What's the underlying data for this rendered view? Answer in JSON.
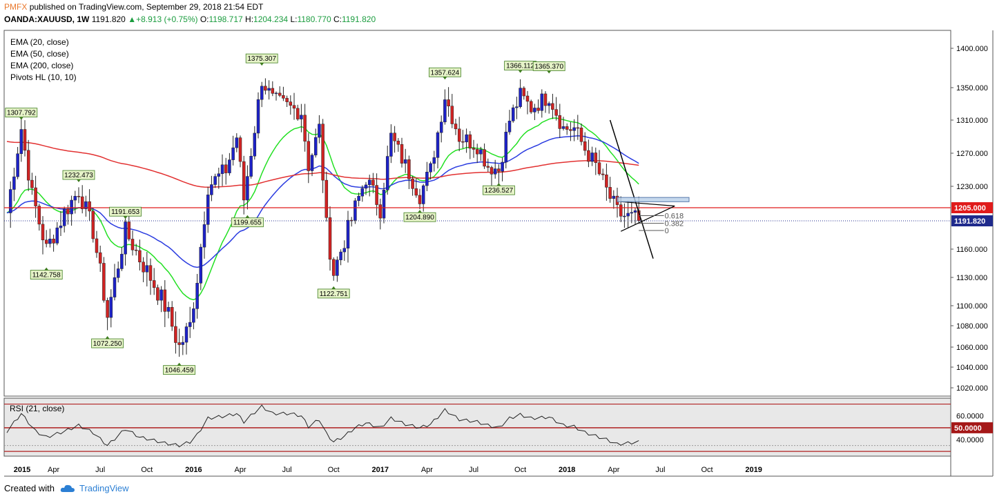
{
  "header": {
    "brand": "PMFX",
    "published": "published on TradingView.com, September 29, 2018 21:54 EDT",
    "symbol": "OANDA:XAUUSD, 1W",
    "price": "1191.820",
    "change": "+8.913 (+0.75%)",
    "o_label": "O:",
    "o": "1198.717",
    "h_label": "H:",
    "h": "1204.234",
    "l_label": "L:",
    "l": "1180.770",
    "c_label": "C:",
    "c": "1191.820"
  },
  "footer": {
    "created": "Created with",
    "brand": "TradingView"
  },
  "colors": {
    "up": "#1d22c8",
    "down": "#d12323",
    "ema20": "#22e022",
    "ema50": "#2a3be0",
    "ema200": "#e23030",
    "level": "#e01b1b",
    "rsi": "#222222",
    "label_bg": "#e6f3c8",
    "label_border": "#3e7d1e"
  },
  "chart_data": [
    {
      "type": "candlestick",
      "title": "OANDA:XAUUSD, 1W",
      "legend": [
        "EMA (20, close)",
        "EMA (50, close)",
        "EMA (200, close)",
        "Pivots HL (10, 10)"
      ],
      "ylim": [
        1005,
        1425
      ],
      "y_ticks": [
        "1400.000",
        "1350.000",
        "1310.000",
        "1270.000",
        "1230.000",
        "1160.000",
        "1130.000",
        "1100.000",
        "1080.000",
        "1060.000",
        "1040.000",
        "1020.000"
      ],
      "x_ticks": [
        "2015",
        "Apr",
        "Jul",
        "Oct",
        "2016",
        "Apr",
        "Jul",
        "Oct",
        "2017",
        "Apr",
        "Jul",
        "Oct",
        "2018",
        "Apr",
        "Jul",
        "Oct",
        "2019"
      ],
      "x_range_weeks": [
        0,
        211
      ],
      "pivots": [
        {
          "week": 4,
          "value": 1307.792,
          "label": "1307.792",
          "kind": "high"
        },
        {
          "week": 20,
          "value": 1232.473,
          "label": "1232.473",
          "kind": "high"
        },
        {
          "week": 11,
          "value": 1142.758,
          "label": "1142.758",
          "kind": "low"
        },
        {
          "week": 33,
          "value": 1191.653,
          "label": "1191.653",
          "kind": "high"
        },
        {
          "week": 28,
          "value": 1072.25,
          "label": "1072.250",
          "kind": "low"
        },
        {
          "week": 48,
          "value": 1046.459,
          "label": "1046.459",
          "kind": "low"
        },
        {
          "week": 71,
          "value": 1375.307,
          "label": "1375.307",
          "kind": "high"
        },
        {
          "week": 71,
          "value": 1199.655,
          "label": "1199.655",
          "kind": "low",
          "offset_week": -4
        },
        {
          "week": 91,
          "value": 1122.751,
          "label": "1122.751",
          "kind": "low"
        },
        {
          "week": 115,
          "value": 1204.89,
          "label": "1204.890",
          "kind": "low"
        },
        {
          "week": 122,
          "value": 1357.624,
          "label": "1357.624",
          "kind": "high"
        },
        {
          "week": 137,
          "value": 1236.527,
          "label": "1236.527",
          "kind": "low"
        },
        {
          "week": 143,
          "value": 1366.112,
          "label": "1366.112",
          "kind": "high"
        },
        {
          "week": 151,
          "value": 1365.37,
          "label": "1365.370",
          "kind": "high"
        }
      ],
      "key_points": [
        {
          "week": 0,
          "value": 1200
        },
        {
          "week": 4,
          "value": 1300
        },
        {
          "week": 7,
          "value": 1220
        },
        {
          "week": 11,
          "value": 1160
        },
        {
          "week": 16,
          "value": 1200
        },
        {
          "week": 20,
          "value": 1225
        },
        {
          "week": 24,
          "value": 1180
        },
        {
          "week": 28,
          "value": 1090
        },
        {
          "week": 33,
          "value": 1180
        },
        {
          "week": 37,
          "value": 1150
        },
        {
          "week": 40,
          "value": 1130
        },
        {
          "week": 44,
          "value": 1100
        },
        {
          "week": 48,
          "value": 1060
        },
        {
          "week": 51,
          "value": 1080
        },
        {
          "week": 53,
          "value": 1130
        },
        {
          "week": 56,
          "value": 1230
        },
        {
          "week": 61,
          "value": 1250
        },
        {
          "week": 64,
          "value": 1290
        },
        {
          "week": 66,
          "value": 1215
        },
        {
          "week": 69,
          "value": 1300
        },
        {
          "week": 71,
          "value": 1360
        },
        {
          "week": 74,
          "value": 1335
        },
        {
          "week": 79,
          "value": 1325
        },
        {
          "week": 82,
          "value": 1320
        },
        {
          "week": 84,
          "value": 1255
        },
        {
          "week": 87,
          "value": 1300
        },
        {
          "week": 89,
          "value": 1185
        },
        {
          "week": 91,
          "value": 1135
        },
        {
          "week": 94,
          "value": 1170
        },
        {
          "week": 97,
          "value": 1205
        },
        {
          "week": 100,
          "value": 1240
        },
        {
          "week": 104,
          "value": 1205
        },
        {
          "week": 107,
          "value": 1290
        },
        {
          "week": 111,
          "value": 1255
        },
        {
          "week": 115,
          "value": 1220
        },
        {
          "week": 118,
          "value": 1250
        },
        {
          "week": 122,
          "value": 1340
        },
        {
          "week": 126,
          "value": 1290
        },
        {
          "week": 131,
          "value": 1280
        },
        {
          "week": 134,
          "value": 1255
        },
        {
          "week": 137,
          "value": 1250
        },
        {
          "week": 140,
          "value": 1310
        },
        {
          "week": 143,
          "value": 1340
        },
        {
          "week": 146,
          "value": 1325
        },
        {
          "week": 151,
          "value": 1340
        },
        {
          "week": 155,
          "value": 1300
        },
        {
          "week": 158,
          "value": 1300
        },
        {
          "week": 161,
          "value": 1275
        },
        {
          "week": 164,
          "value": 1255
        },
        {
          "week": 167,
          "value": 1225
        },
        {
          "week": 170,
          "value": 1200
        },
        {
          "week": 173,
          "value": 1195
        },
        {
          "week": 176,
          "value": 1192
        }
      ],
      "last_week": 176,
      "horizontal_level": {
        "value": 1205.0,
        "label": "1205.000"
      },
      "current_price": {
        "value": 1191.82,
        "label": "1191.820"
      },
      "fib_labels": [
        "0.618",
        "0.382",
        "0"
      ],
      "indicators": [
        "EMA 20",
        "EMA 50",
        "EMA 200"
      ]
    },
    {
      "type": "line",
      "title": "RSI (21, close)",
      "ylim": [
        26,
        75
      ],
      "y_ticks": [
        "60.0000",
        "40.0000"
      ],
      "level": {
        "value": 50,
        "label": "50.0000"
      },
      "bands": [
        30,
        70
      ],
      "key_points": [
        {
          "week": 0,
          "value": 47
        },
        {
          "week": 4,
          "value": 62
        },
        {
          "week": 8,
          "value": 47
        },
        {
          "week": 11,
          "value": 42
        },
        {
          "week": 16,
          "value": 47
        },
        {
          "week": 20,
          "value": 52
        },
        {
          "week": 24,
          "value": 46
        },
        {
          "week": 28,
          "value": 35
        },
        {
          "week": 33,
          "value": 49
        },
        {
          "week": 37,
          "value": 42
        },
        {
          "week": 40,
          "value": 40
        },
        {
          "week": 44,
          "value": 37
        },
        {
          "week": 48,
          "value": 35
        },
        {
          "week": 51,
          "value": 38
        },
        {
          "week": 53,
          "value": 44
        },
        {
          "week": 56,
          "value": 58
        },
        {
          "week": 61,
          "value": 60
        },
        {
          "week": 64,
          "value": 62
        },
        {
          "week": 66,
          "value": 55
        },
        {
          "week": 69,
          "value": 63
        },
        {
          "week": 71,
          "value": 68
        },
        {
          "week": 74,
          "value": 62
        },
        {
          "week": 79,
          "value": 62
        },
        {
          "week": 82,
          "value": 60
        },
        {
          "week": 84,
          "value": 51
        },
        {
          "week": 87,
          "value": 57
        },
        {
          "week": 89,
          "value": 45
        },
        {
          "week": 91,
          "value": 38
        },
        {
          "week": 94,
          "value": 43
        },
        {
          "week": 97,
          "value": 50
        },
        {
          "week": 100,
          "value": 54
        },
        {
          "week": 104,
          "value": 50
        },
        {
          "week": 107,
          "value": 58
        },
        {
          "week": 111,
          "value": 53
        },
        {
          "week": 115,
          "value": 50
        },
        {
          "week": 118,
          "value": 53
        },
        {
          "week": 122,
          "value": 65
        },
        {
          "week": 126,
          "value": 57
        },
        {
          "week": 131,
          "value": 55
        },
        {
          "week": 134,
          "value": 52
        },
        {
          "week": 137,
          "value": 50
        },
        {
          "week": 140,
          "value": 58
        },
        {
          "week": 143,
          "value": 61
        },
        {
          "week": 146,
          "value": 58
        },
        {
          "week": 151,
          "value": 59
        },
        {
          "week": 155,
          "value": 52
        },
        {
          "week": 158,
          "value": 51
        },
        {
          "week": 161,
          "value": 46
        },
        {
          "week": 164,
          "value": 43
        },
        {
          "week": 167,
          "value": 40
        },
        {
          "week": 170,
          "value": 36
        },
        {
          "week": 173,
          "value": 37
        },
        {
          "week": 176,
          "value": 38
        }
      ]
    }
  ]
}
